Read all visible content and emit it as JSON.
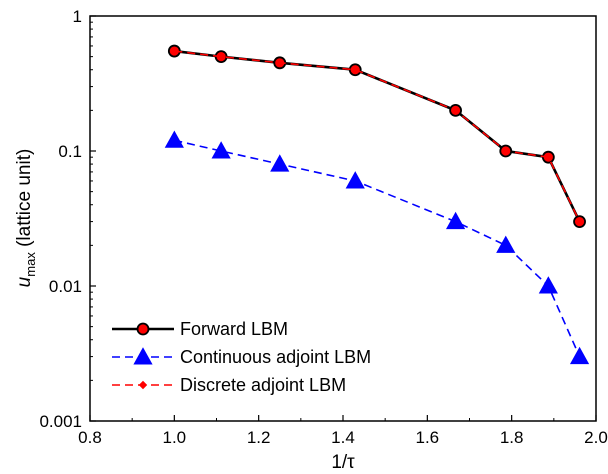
{
  "chart_data": {
    "type": "line",
    "title": "",
    "xlabel": "1/τ",
    "ylabel_main": "u",
    "ylabel_sub": "max",
    "ylabel_rest": " (lattice unit)",
    "xscale": "linear",
    "yscale": "log",
    "xlim": [
      0.8,
      2.0
    ],
    "ylim": [
      0.001,
      1
    ],
    "x_ticks": [
      0.8,
      1.0,
      1.2,
      1.4,
      1.6,
      1.8,
      2.0
    ],
    "x_tick_labels": [
      "0.8",
      "1.0",
      "1.2",
      "1.4",
      "1.6",
      "1.8",
      "2.0"
    ],
    "y_ticks": [
      0.001,
      0.01,
      0.1,
      1
    ],
    "y_tick_labels": [
      "0.001",
      "0.01",
      "0.1",
      "1"
    ],
    "grid": false,
    "legend_position": "bottom-left",
    "series": [
      {
        "name": "Forward LBM",
        "color": "#000000",
        "line_style": "solid",
        "marker": "circle",
        "marker_fill": "#ff0000",
        "x": [
          1.0,
          1.111,
          1.25,
          1.429,
          1.667,
          1.786,
          1.887,
          1.961
        ],
        "y": [
          0.55,
          0.5,
          0.45,
          0.4,
          0.2,
          0.1,
          0.09,
          0.03
        ]
      },
      {
        "name": "Continuous adjoint LBM",
        "color": "#0000ff",
        "line_style": "dashed",
        "marker": "triangle",
        "marker_fill": "#0000ff",
        "x": [
          1.0,
          1.111,
          1.25,
          1.429,
          1.667,
          1.786,
          1.887,
          1.961
        ],
        "y": [
          0.12,
          0.1,
          0.08,
          0.06,
          0.03,
          0.02,
          0.01,
          0.003
        ]
      },
      {
        "name": "Discrete adjoint LBM",
        "color": "#ff0000",
        "line_style": "dashed",
        "marker": "diamond",
        "marker_fill": "#ff0000",
        "x": [
          1.0,
          1.111,
          1.25,
          1.429,
          1.667,
          1.786,
          1.887,
          1.961
        ],
        "y": [
          0.55,
          0.5,
          0.45,
          0.4,
          0.2,
          0.1,
          0.09,
          0.03
        ]
      }
    ]
  }
}
